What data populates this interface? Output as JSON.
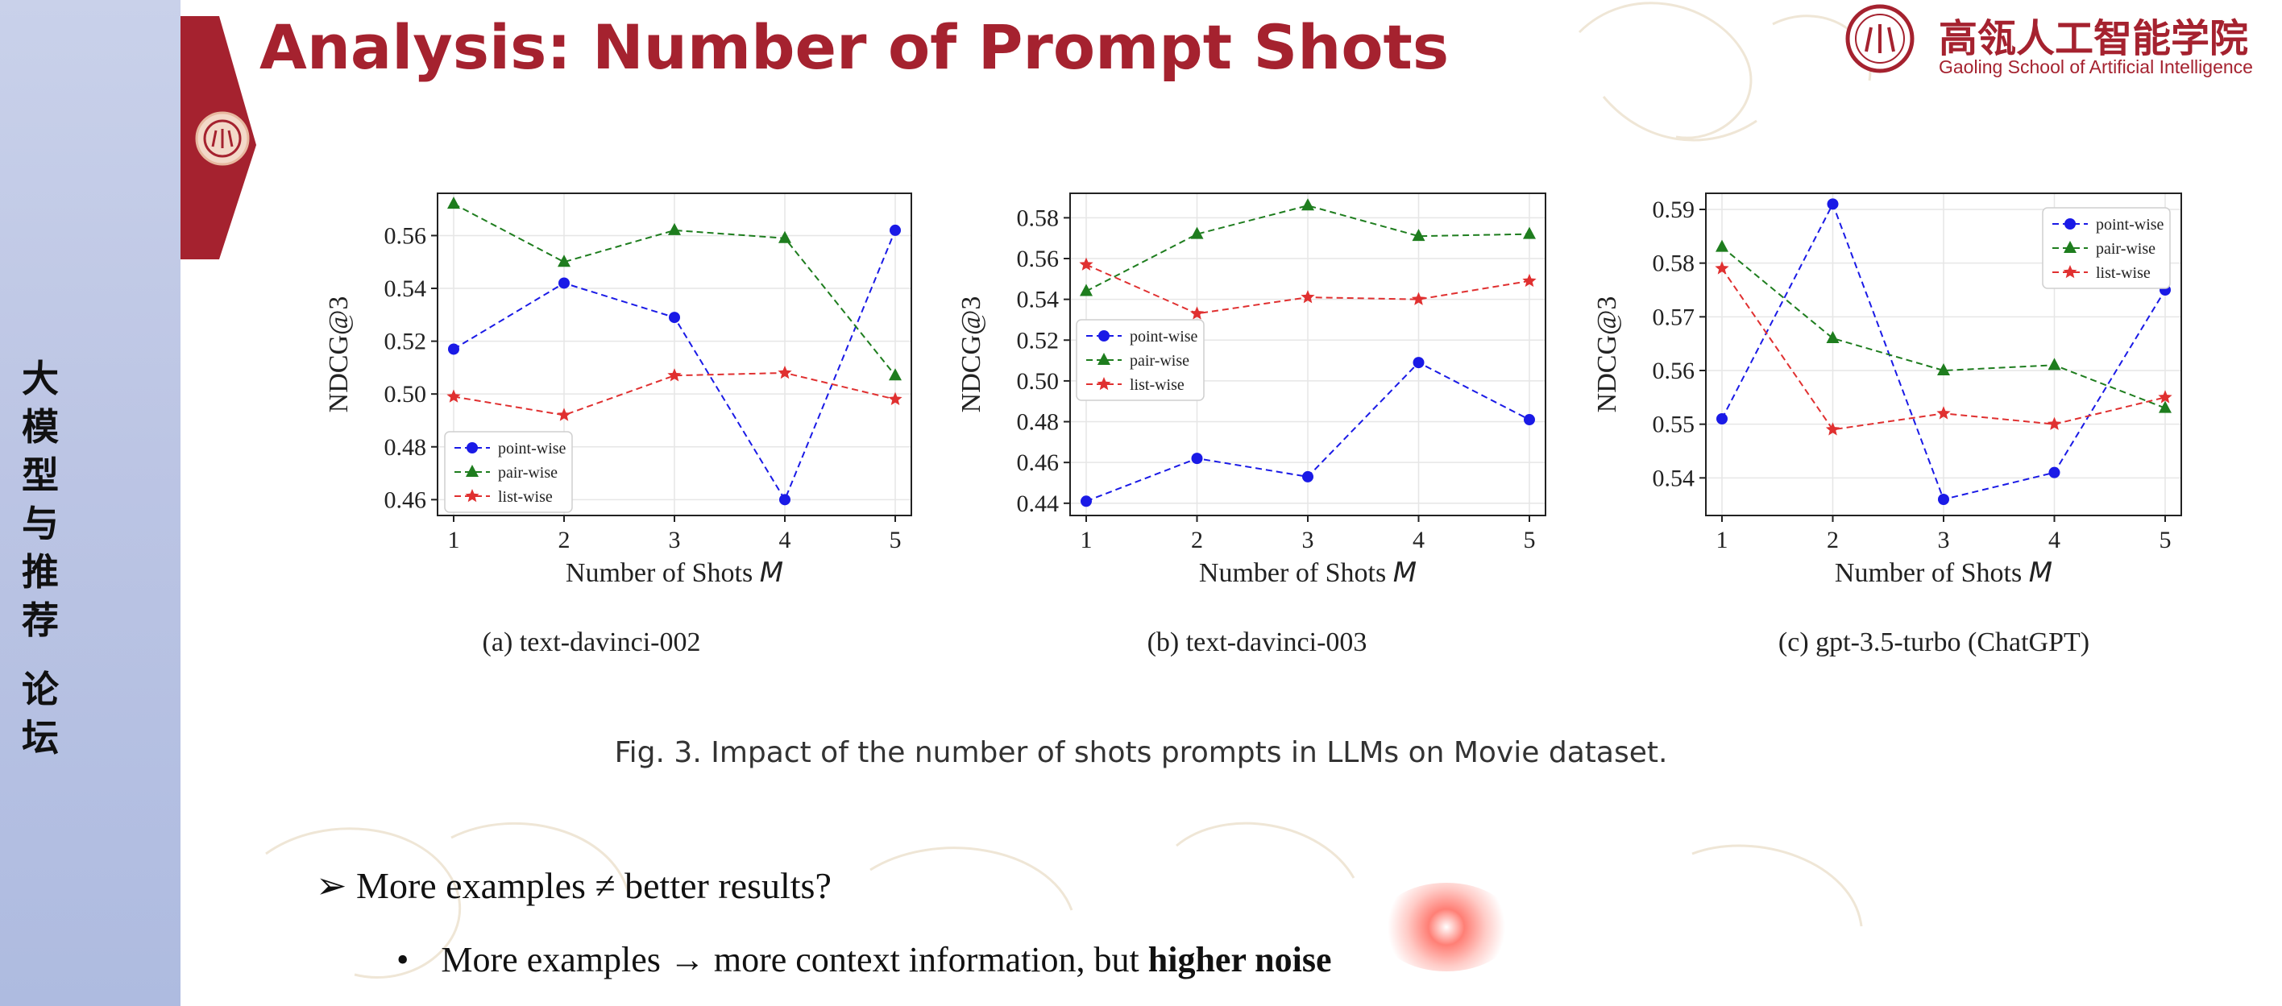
{
  "sidebar": {
    "chars": [
      "大",
      "模",
      "型",
      "与",
      "推",
      "荐",
      "论",
      "坛"
    ]
  },
  "slide": {
    "title": "Analysis: Number of Prompt Shots",
    "school_name": "高瓴人工智能学院",
    "school_sub": "Gaoling School of Artificial Intelligence",
    "figure_caption": "Fig. 3.  Impact of the number of shots prompts in LLMs on Movie dataset.",
    "bullet1_symbol": "➢",
    "bullet1": "More examples ≠ better results?",
    "bullet2_dot": "•",
    "bullet2_prefix": "More examples",
    "bullet2_arrow": "→",
    "bullet2_middle": " more context information, but ",
    "bullet2_bold": "higher noise"
  },
  "colors": {
    "title": "#a5222f",
    "point": "#1a1ae6",
    "pair": "#1e7d1e",
    "list": "#e03030"
  },
  "chart_data": [
    {
      "type": "line",
      "subtitle": "(a)  text-davinci-002",
      "xlabel": "Number of Shots",
      "xlabel_var": "M",
      "ylabel": "NDCG@3",
      "x": [
        1,
        2,
        3,
        4,
        5
      ],
      "ylim": [
        0.454,
        0.576
      ],
      "yticks": [
        0.46,
        0.48,
        0.5,
        0.52,
        0.54,
        0.56
      ],
      "grid": true,
      "legend": "bottom-left",
      "series": [
        {
          "name": "point-wise",
          "marker": "circle",
          "color": "#1a1ae6",
          "values": [
            0.517,
            0.542,
            0.529,
            0.46,
            0.562
          ]
        },
        {
          "name": "pair-wise",
          "marker": "triangle",
          "color": "#1e7d1e",
          "values": [
            0.572,
            0.55,
            0.562,
            0.559,
            0.507
          ]
        },
        {
          "name": "list-wise",
          "marker": "star",
          "color": "#e03030",
          "values": [
            0.499,
            0.492,
            0.507,
            0.508,
            0.498
          ]
        }
      ]
    },
    {
      "type": "line",
      "subtitle": "(b)  text-davinci-003",
      "xlabel": "Number of Shots",
      "xlabel_var": "M",
      "ylabel": "NDCG@3",
      "x": [
        1,
        2,
        3,
        4,
        5
      ],
      "ylim": [
        0.434,
        0.592
      ],
      "yticks": [
        0.44,
        0.46,
        0.48,
        0.5,
        0.52,
        0.54,
        0.56,
        0.58
      ],
      "grid": true,
      "legend": "center-left",
      "series": [
        {
          "name": "point-wise",
          "marker": "circle",
          "color": "#1a1ae6",
          "values": [
            0.441,
            0.462,
            0.453,
            0.509,
            0.481
          ]
        },
        {
          "name": "pair-wise",
          "marker": "triangle",
          "color": "#1e7d1e",
          "values": [
            0.544,
            0.572,
            0.586,
            0.571,
            0.572
          ]
        },
        {
          "name": "list-wise",
          "marker": "star",
          "color": "#e03030",
          "values": [
            0.557,
            0.533,
            0.541,
            0.54,
            0.549
          ]
        }
      ]
    },
    {
      "type": "line",
      "subtitle": "(c)  gpt-3.5-turbo (ChatGPT)",
      "xlabel": "Number of Shots",
      "xlabel_var": "M",
      "ylabel": "NDCG@3",
      "x": [
        1,
        2,
        3,
        4,
        5
      ],
      "ylim": [
        0.533,
        0.593
      ],
      "yticks": [
        0.54,
        0.55,
        0.56,
        0.57,
        0.58,
        0.59
      ],
      "grid": true,
      "legend": "top-right",
      "series": [
        {
          "name": "point-wise",
          "marker": "circle",
          "color": "#1a1ae6",
          "values": [
            0.551,
            0.591,
            0.536,
            0.541,
            0.575
          ]
        },
        {
          "name": "pair-wise",
          "marker": "triangle",
          "color": "#1e7d1e",
          "values": [
            0.583,
            0.566,
            0.56,
            0.561,
            0.553
          ]
        },
        {
          "name": "list-wise",
          "marker": "star",
          "color": "#e03030",
          "values": [
            0.579,
            0.549,
            0.552,
            0.55,
            0.555
          ]
        }
      ]
    }
  ]
}
